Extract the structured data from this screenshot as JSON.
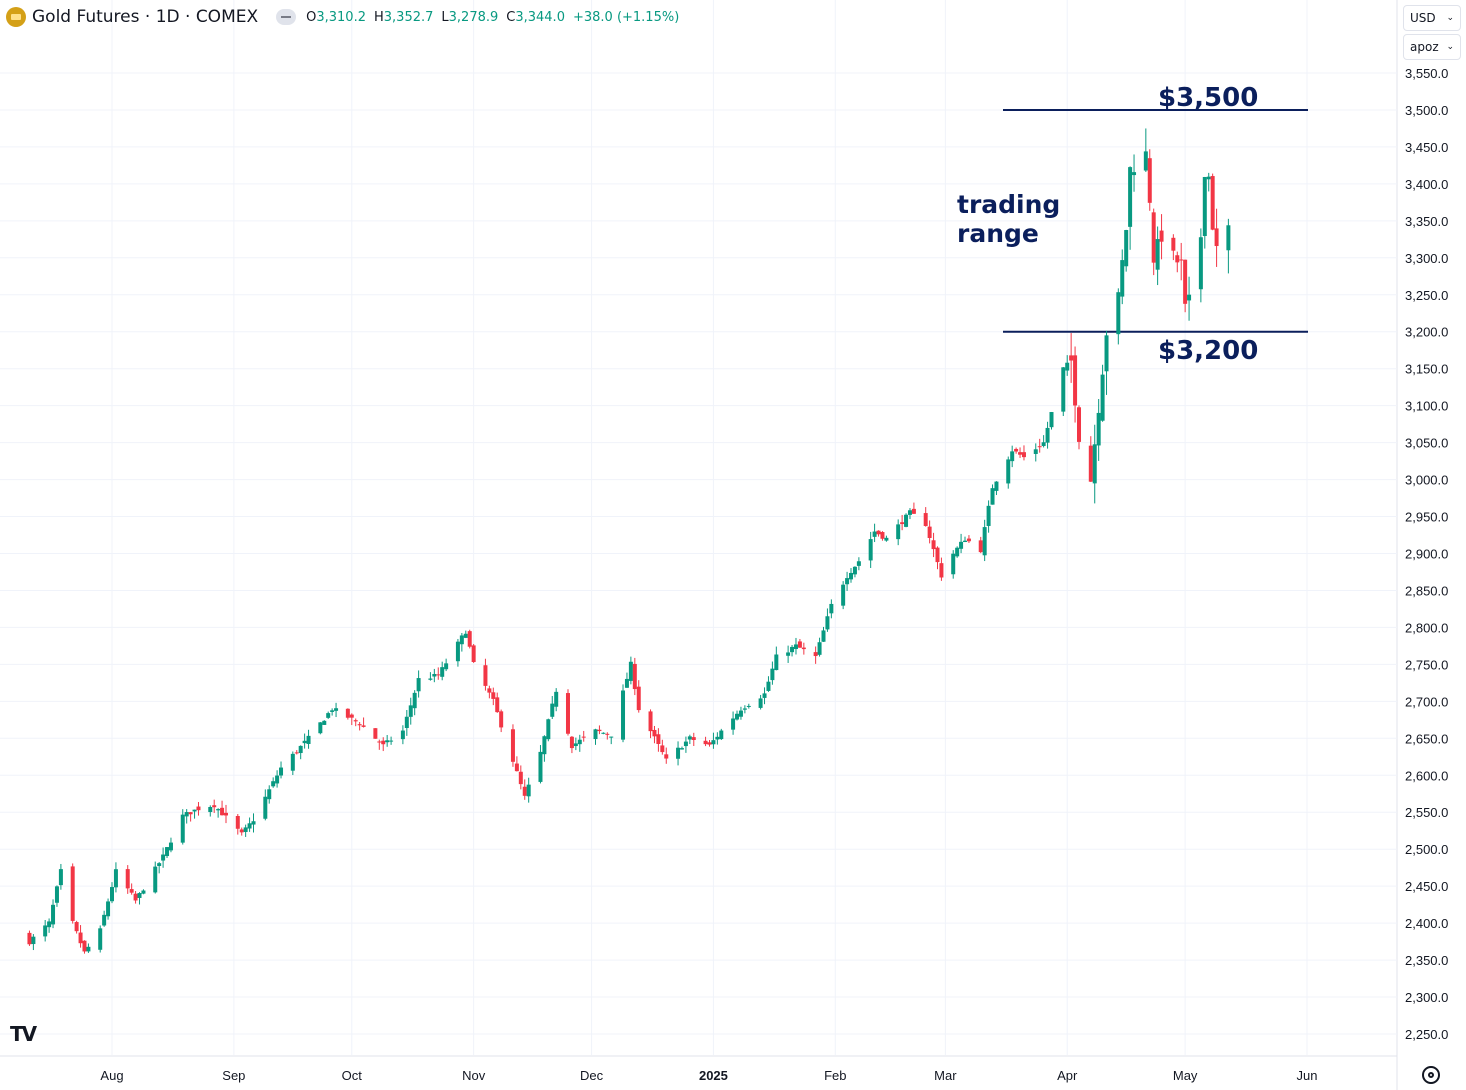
{
  "header": {
    "title": "Gold Futures · 1D · COMEX",
    "ohlc": [
      {
        "k": "O",
        "v": "3,310.2"
      },
      {
        "k": "H",
        "v": "3,352.7"
      },
      {
        "k": "L",
        "v": "3,278.9"
      },
      {
        "k": "C",
        "v": "3,344.0"
      }
    ],
    "change": "+38.0 (+1.15%)"
  },
  "controls": {
    "currency": "USD",
    "unit": "apoz"
  },
  "colors": {
    "up": "#089981",
    "down": "#f23645",
    "annotation": "#0b1f5c",
    "grid": "#f0f3fa"
  },
  "chart_data": {
    "type": "candlestick",
    "yticks": [
      "2,250.0",
      "2,300.0",
      "2,350.0",
      "2,400.0",
      "2,450.0",
      "2,500.0",
      "2,550.0",
      "2,600.0",
      "2,650.0",
      "2,700.0",
      "2,750.0",
      "2,800.0",
      "2,850.0",
      "2,900.0",
      "2,950.0",
      "3,000.0",
      "3,050.0",
      "3,100.0",
      "3,150.0",
      "3,200.0",
      "3,250.0",
      "3,300.0",
      "3,350.0",
      "3,400.0",
      "3,450.0",
      "3,500.0",
      "3,550.0"
    ],
    "ylim": [
      2225,
      3590
    ],
    "xlabels": [
      {
        "label": "Aug",
        "date": "2024-08-01"
      },
      {
        "label": "Sep",
        "date": "2024-09-01"
      },
      {
        "label": "Oct",
        "date": "2024-10-01"
      },
      {
        "label": "Nov",
        "date": "2024-11-01"
      },
      {
        "label": "Dec",
        "date": "2024-12-01"
      },
      {
        "label": "2025",
        "date": "2025-01-01"
      },
      {
        "label": "Feb",
        "date": "2025-02-01"
      },
      {
        "label": "Mar",
        "date": "2025-03-01"
      },
      {
        "label": "Apr",
        "date": "2025-04-01"
      },
      {
        "label": "May",
        "date": "2025-05-01"
      },
      {
        "label": "Jun",
        "date": "2025-06-01"
      }
    ],
    "annotations": {
      "resistance": {
        "value": 3500,
        "label": "$3,500"
      },
      "support": {
        "value": 3200,
        "label": "$3,200"
      },
      "range_line1": "trading",
      "range_line2": "range"
    },
    "close_keypoints": [
      [
        "2024-07-11",
        2375
      ],
      [
        "2024-07-16",
        2400
      ],
      [
        "2024-07-19",
        2470
      ],
      [
        "2024-07-22",
        2400
      ],
      [
        "2024-07-25",
        2360
      ],
      [
        "2024-07-29",
        2390
      ],
      [
        "2024-08-02",
        2470
      ],
      [
        "2024-08-07",
        2430
      ],
      [
        "2024-08-14",
        2490
      ],
      [
        "2024-08-19",
        2545
      ],
      [
        "2024-08-23",
        2555
      ],
      [
        "2024-08-27",
        2560
      ],
      [
        "2024-09-03",
        2520
      ],
      [
        "2024-09-06",
        2540
      ],
      [
        "2024-09-13",
        2610
      ],
      [
        "2024-09-20",
        2650
      ],
      [
        "2024-09-26",
        2690
      ],
      [
        "2024-10-03",
        2670
      ],
      [
        "2024-10-09",
        2640
      ],
      [
        "2024-10-14",
        2660
      ],
      [
        "2024-10-18",
        2730
      ],
      [
        "2024-10-23",
        2735
      ],
      [
        "2024-10-30",
        2795
      ],
      [
        "2024-11-01",
        2750
      ],
      [
        "2024-11-06",
        2700
      ],
      [
        "2024-11-11",
        2620
      ],
      [
        "2024-11-14",
        2570
      ],
      [
        "2024-11-18",
        2630
      ],
      [
        "2024-11-22",
        2715
      ],
      [
        "2024-11-26",
        2640
      ],
      [
        "2024-12-02",
        2660
      ],
      [
        "2024-12-06",
        2655
      ],
      [
        "2024-12-11",
        2750
      ],
      [
        "2024-12-13",
        2690
      ],
      [
        "2024-12-18",
        2640
      ],
      [
        "2024-12-20",
        2620
      ],
      [
        "2024-12-26",
        2650
      ],
      [
        "2024-12-31",
        2640
      ],
      [
        "2025-01-03",
        2660
      ],
      [
        "2025-01-08",
        2690
      ],
      [
        "2025-01-14",
        2710
      ],
      [
        "2025-01-17",
        2760
      ],
      [
        "2025-01-22",
        2775
      ],
      [
        "2025-01-27",
        2760
      ],
      [
        "2025-01-31",
        2830
      ],
      [
        "2025-02-04",
        2870
      ],
      [
        "2025-02-07",
        2890
      ],
      [
        "2025-02-11",
        2930
      ],
      [
        "2025-02-14",
        2920
      ],
      [
        "2025-02-20",
        2955
      ],
      [
        "2025-02-24",
        2940
      ],
      [
        "2025-02-28",
        2870
      ],
      [
        "2025-03-03",
        2900
      ],
      [
        "2025-03-06",
        2920
      ],
      [
        "2025-03-10",
        2905
      ],
      [
        "2025-03-13",
        2990
      ],
      [
        "2025-03-18",
        3040
      ],
      [
        "2025-03-21",
        3030
      ],
      [
        "2025-03-26",
        3050
      ],
      [
        "2025-03-31",
        3150
      ],
      [
        "2025-04-02",
        3160
      ],
      [
        "2025-04-04",
        3060
      ],
      [
        "2025-04-07",
        3000
      ],
      [
        "2025-04-09",
        3100
      ],
      [
        "2025-04-11",
        3200
      ],
      [
        "2025-04-14",
        3245
      ],
      [
        "2025-04-16",
        3340
      ],
      [
        "2025-04-17",
        3420
      ],
      [
        "2025-04-21",
        3440
      ],
      [
        "2025-04-22",
        3380
      ],
      [
        "2025-04-23",
        3300
      ],
      [
        "2025-04-25",
        3330
      ],
      [
        "2025-04-28",
        3300
      ],
      [
        "2025-04-30",
        3290
      ],
      [
        "2025-05-01",
        3230
      ],
      [
        "2025-05-02",
        3240
      ],
      [
        "2025-05-05",
        3330
      ],
      [
        "2025-05-06",
        3420
      ],
      [
        "2025-05-07",
        3410
      ],
      [
        "2025-05-08",
        3345
      ],
      [
        "2025-05-09",
        3310
      ],
      [
        "2025-05-12",
        3344
      ]
    ]
  }
}
